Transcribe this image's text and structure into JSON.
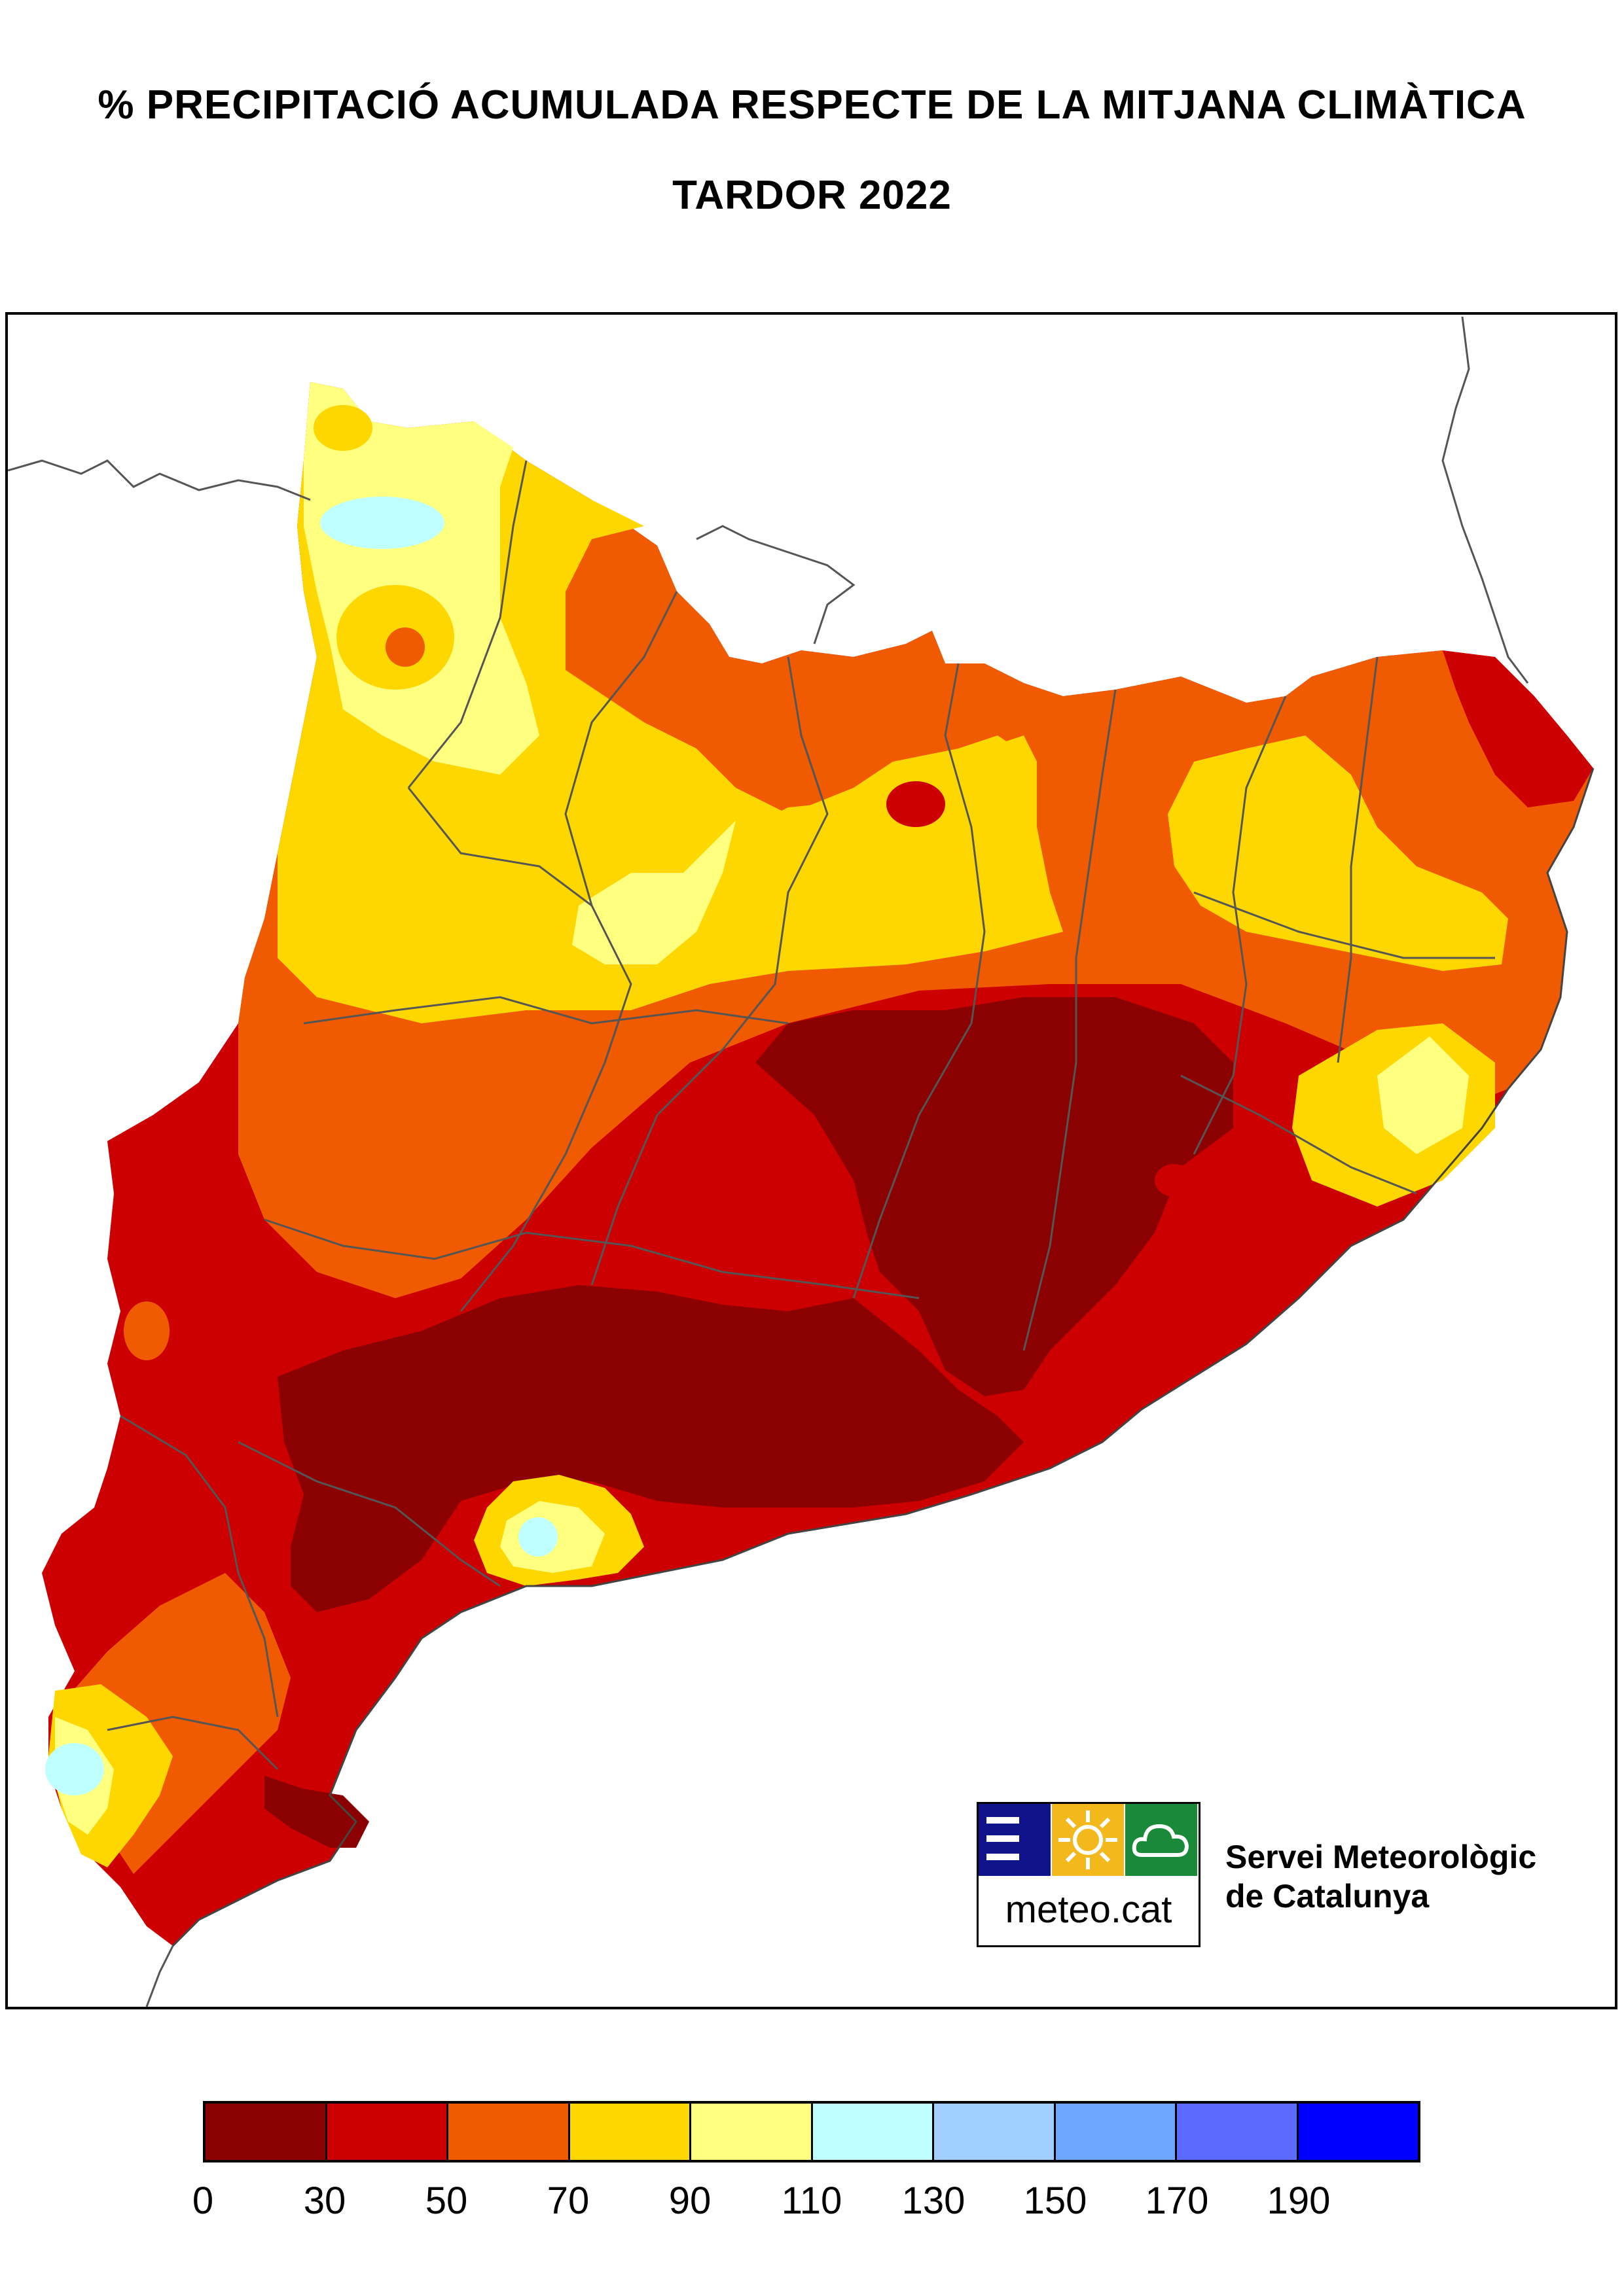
{
  "title": {
    "line1": "% PRECIPITACIÓ ACUMULADA RESPECTE DE LA MITJANA CLIMÀTICA",
    "line2": "TARDOR 2022"
  },
  "logo": {
    "text": "meteo.cat",
    "tile_colors": [
      "#10148a",
      "#f2b81c",
      "#1a8a3a"
    ]
  },
  "organization": {
    "line1": "Servei Meteorològic",
    "line2": "de Catalunya"
  },
  "legend": {
    "tick_labels": [
      "0",
      "30",
      "50",
      "70",
      "90",
      "110",
      "130",
      "150",
      "170",
      "190"
    ],
    "colors": [
      "#8b0000",
      "#cc0000",
      "#f05a00",
      "#ffd700",
      "#ffff80",
      "#c0ffff",
      "#a0cfff",
      "#6ca6ff",
      "#5b6bff",
      "#0000ff"
    ]
  },
  "map": {
    "region": "Catalonia",
    "class_colors": {
      "0-30": "#8b0000",
      "30-50": "#cc0000",
      "50-70": "#f05a00",
      "70-90": "#ffd700",
      "90-110": "#ffff80",
      "110-130": "#c0ffff"
    },
    "border_color": "#555555"
  }
}
